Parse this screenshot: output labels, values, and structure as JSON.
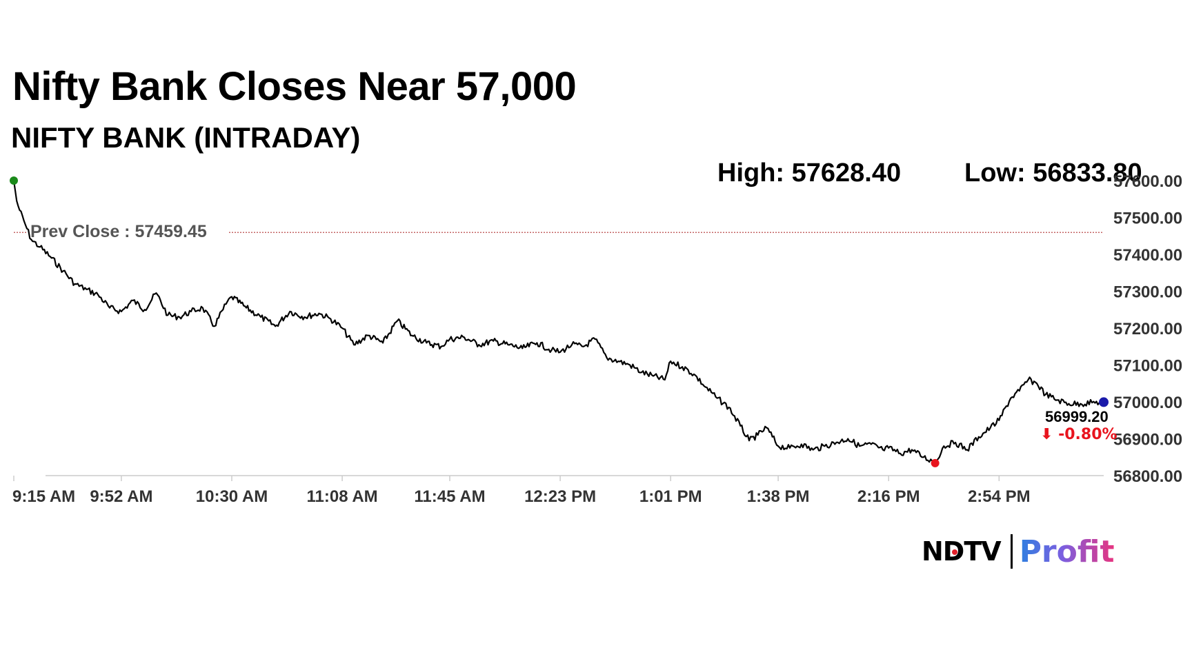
{
  "title": "Nifty Bank Closes Near 57,000",
  "subtitle": "NIFTY BANK (INTRADAY)",
  "stats": {
    "high": "High: 57628.40",
    "low": "Low: 56833.80"
  },
  "logo": {
    "brand": "NDTV",
    "product": "Profit"
  },
  "chart_data": {
    "type": "line",
    "title": "",
    "xlabel": "",
    "ylabel": "",
    "x_ticks": [
      "9:15 AM",
      "9:52 AM",
      "10:30 AM",
      "11:08 AM",
      "11:45 AM",
      "12:23 PM",
      "1:01 PM",
      "1:38 PM",
      "2:16 PM",
      "2:54 PM"
    ],
    "y_ticks": [
      "56800.00",
      "56900.00",
      "57000.00",
      "57100.00",
      "57200.00",
      "57300.00",
      "57400.00",
      "57500.00",
      "57600.00"
    ],
    "ylim": [
      56800,
      57600
    ],
    "xlim": [
      "9:15 AM",
      "3:30 PM"
    ],
    "grid": false,
    "prev_close": {
      "label": "Prev Close : 57459.45",
      "value": 57459.45,
      "color": "#b03030"
    },
    "open_marker": {
      "time": "9:15 AM",
      "value": 57600,
      "color": "#1a8a1a"
    },
    "low_marker": {
      "time": "2:32 PM",
      "value": 56833.8,
      "color": "#e8141e"
    },
    "last_marker": {
      "time": "3:30 PM",
      "value": 56999.2,
      "color": "#1a1aaa"
    },
    "last_value_label": "56999.20",
    "change_label": "⬇ -0.80%",
    "change_color": "#e8141e",
    "line_color": "#000000",
    "series": [
      {
        "x": [
          "9:15 AM",
          "9:16 AM",
          "9:17 AM",
          "9:19 AM",
          "9:21 AM",
          "9:24 AM",
          "9:28 AM",
          "9:32 AM",
          "9:36 AM",
          "9:40 AM",
          "9:44 AM",
          "9:48 AM",
          "9:52 AM",
          "9:56 AM",
          "10:00 AM",
          "10:04 AM",
          "10:08 AM",
          "10:12 AM",
          "10:16 AM",
          "10:20 AM",
          "10:24 AM",
          "10:28 AM",
          "10:30 AM",
          "10:35 AM",
          "10:40 AM",
          "10:45 AM",
          "10:50 AM",
          "10:55 AM",
          "11:00 AM",
          "11:04 AM",
          "11:08 AM",
          "11:12 AM",
          "11:17 AM",
          "11:22 AM",
          "11:27 AM",
          "11:32 AM",
          "11:37 AM",
          "11:42 AM",
          "11:45 AM",
          "11:50 AM",
          "11:55 AM",
          "12:00 PM",
          "12:05 PM",
          "12:10 PM",
          "12:15 PM",
          "12:20 PM",
          "12:23 PM",
          "12:27 PM",
          "12:31 PM",
          "12:35 PM",
          "12:39 PM",
          "12:43 PM",
          "12:47 PM",
          "12:51 PM",
          "12:55 PM",
          "12:59 PM",
          "1:01 PM",
          "1:05 PM",
          "1:09 PM",
          "1:13 PM",
          "1:17 PM",
          "1:21 PM",
          "1:25 PM",
          "1:28 PM",
          "1:31 PM",
          "1:34 PM",
          "1:38 PM",
          "1:42 PM",
          "1:46 PM",
          "1:50 PM",
          "1:54 PM",
          "1:58 PM",
          "2:02 PM",
          "2:06 PM",
          "2:10 PM",
          "2:14 PM",
          "2:16 PM",
          "2:20 PM",
          "2:24 PM",
          "2:28 PM",
          "2:31 PM",
          "2:32 PM",
          "2:35 PM",
          "2:39 PM",
          "2:43 PM",
          "2:47 PM",
          "2:51 PM",
          "2:54 PM",
          "2:58 PM",
          "3:01 PM",
          "3:04 PM",
          "3:07 PM",
          "3:10 PM",
          "3:14 PM",
          "3:18 PM",
          "3:22 PM",
          "3:26 PM",
          "3:30 PM"
        ],
        "values": [
          57600,
          57545,
          57520,
          57480,
          57440,
          57420,
          57390,
          57355,
          57320,
          57305,
          57290,
          57255,
          57245,
          57275,
          57250,
          57295,
          57235,
          57230,
          57245,
          57255,
          57205,
          57265,
          57285,
          57255,
          57230,
          57205,
          57245,
          57230,
          57240,
          57225,
          57200,
          57155,
          57180,
          57160,
          57220,
          57180,
          57160,
          57150,
          57170,
          57175,
          57155,
          57165,
          57155,
          57145,
          57160,
          57140,
          57135,
          57155,
          57150,
          57170,
          57120,
          57110,
          57100,
          57080,
          57070,
          57060,
          57110,
          57095,
          57075,
          57040,
          57010,
          56985,
          56935,
          56895,
          56910,
          56930,
          56880,
          56875,
          56885,
          56870,
          56880,
          56890,
          56900,
          56880,
          56885,
          56870,
          56875,
          56860,
          56870,
          56850,
          56840,
          56834,
          56880,
          56890,
          56870,
          56905,
          56930,
          56950,
          57010,
          57030,
          57060,
          57050,
          57020,
          57005,
          56995,
          56995,
          56998,
          56999.2
        ]
      }
    ]
  }
}
